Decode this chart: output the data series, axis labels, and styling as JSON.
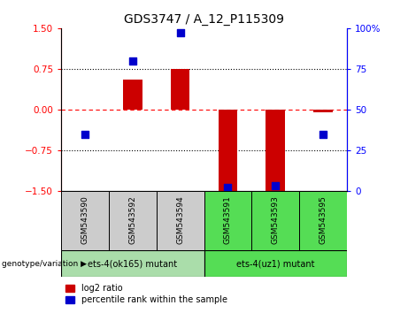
{
  "title": "GDS3747 / A_12_P115309",
  "samples": [
    "GSM543590",
    "GSM543592",
    "GSM543594",
    "GSM543591",
    "GSM543593",
    "GSM543595"
  ],
  "log2_ratio": [
    0.0,
    0.55,
    0.75,
    -1.5,
    -1.5,
    -0.05
  ],
  "percentile_rank": [
    35,
    80,
    97,
    2,
    3,
    35
  ],
  "ylim_left": [
    -1.5,
    1.5
  ],
  "ylim_right": [
    0,
    100
  ],
  "bar_color": "#cc0000",
  "dot_color": "#0000cc",
  "group1_label": "ets-4(ok165) mutant",
  "group2_label": "ets-4(uz1) mutant",
  "group1_indices": [
    0,
    1,
    2
  ],
  "group2_indices": [
    3,
    4,
    5
  ],
  "group1_bg": "#cccccc",
  "group2_bg": "#55dd55",
  "genotype_label": "genotype/variation",
  "legend_red_label": "log2 ratio",
  "legend_blue_label": "percentile rank within the sample",
  "yticks_left": [
    -1.5,
    -0.75,
    0,
    0.75,
    1.5
  ],
  "yticks_right": [
    0,
    25,
    50,
    75,
    100
  ]
}
